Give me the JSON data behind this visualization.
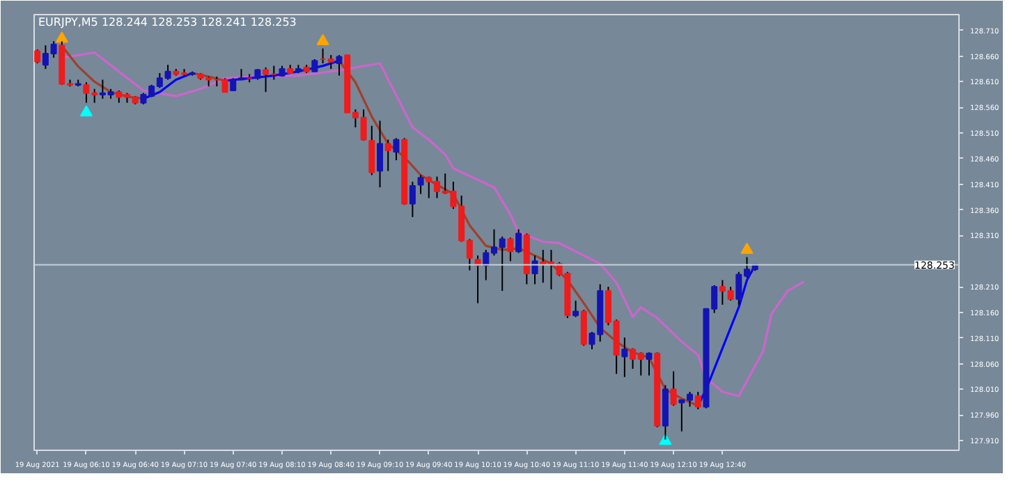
{
  "chart_data": {
    "type": "candlestick",
    "title": "EURJPY,M5 128.244 128.253 128.241 128.253",
    "x": [
      "2021-08-19T05:40",
      "2021-08-19T05:45",
      "2021-08-19T05:50",
      "2021-08-19T05:55",
      "2021-08-19T06:00",
      "2021-08-19T06:05",
      "2021-08-19T06:10",
      "2021-08-19T06:15",
      "2021-08-19T06:20",
      "2021-08-19T06:25",
      "2021-08-19T06:30",
      "2021-08-19T06:35",
      "2021-08-19T06:40",
      "2021-08-19T06:45",
      "2021-08-19T06:50",
      "2021-08-19T06:55",
      "2021-08-19T07:00",
      "2021-08-19T07:05",
      "2021-08-19T07:10",
      "2021-08-19T07:15",
      "2021-08-19T07:20",
      "2021-08-19T07:25",
      "2021-08-19T07:30",
      "2021-08-19T07:35",
      "2021-08-19T07:40",
      "2021-08-19T07:45",
      "2021-08-19T07:50",
      "2021-08-19T07:55",
      "2021-08-19T08:00",
      "2021-08-19T08:05",
      "2021-08-19T08:10",
      "2021-08-19T08:15",
      "2021-08-19T08:20",
      "2021-08-19T08:25",
      "2021-08-19T08:30",
      "2021-08-19T08:35",
      "2021-08-19T08:40",
      "2021-08-19T08:45",
      "2021-08-19T08:50",
      "2021-08-19T08:55",
      "2021-08-19T09:00",
      "2021-08-19T09:05",
      "2021-08-19T09:10",
      "2021-08-19T09:15",
      "2021-08-19T09:20",
      "2021-08-19T09:25",
      "2021-08-19T09:30",
      "2021-08-19T09:35",
      "2021-08-19T09:40",
      "2021-08-19T09:45",
      "2021-08-19T09:50",
      "2021-08-19T09:55",
      "2021-08-19T10:00",
      "2021-08-19T10:05",
      "2021-08-19T10:10",
      "2021-08-19T10:15",
      "2021-08-19T10:20",
      "2021-08-19T10:25",
      "2021-08-19T10:30",
      "2021-08-19T10:35",
      "2021-08-19T10:40",
      "2021-08-19T10:45",
      "2021-08-19T10:50",
      "2021-08-19T10:55",
      "2021-08-19T11:00",
      "2021-08-19T11:05",
      "2021-08-19T11:10",
      "2021-08-19T11:15",
      "2021-08-19T11:20",
      "2021-08-19T11:25",
      "2021-08-19T11:30",
      "2021-08-19T11:35",
      "2021-08-19T11:40",
      "2021-08-19T11:45",
      "2021-08-19T11:50",
      "2021-08-19T11:55",
      "2021-08-19T12:00",
      "2021-08-19T12:05",
      "2021-08-19T12:10",
      "2021-08-19T12:15",
      "2021-08-19T12:20",
      "2021-08-19T12:25",
      "2021-08-19T12:30",
      "2021-08-19T12:35",
      "2021-08-19T12:40",
      "2021-08-19T12:45",
      "2021-08-19T12:50",
      "2021-08-19T12:55",
      "2021-08-19T13:00"
    ],
    "ohlc": [
      [
        128.67,
        128.673,
        128.646,
        128.649
      ],
      [
        128.643,
        128.681,
        128.635,
        128.665
      ],
      [
        128.665,
        128.689,
        128.657,
        128.683
      ],
      [
        128.681,
        128.689,
        128.604,
        128.606
      ],
      [
        128.606,
        128.614,
        128.601,
        128.604
      ],
      [
        128.604,
        128.614,
        128.601,
        128.606
      ],
      [
        128.604,
        128.609,
        128.569,
        128.588
      ],
      [
        128.588,
        128.596,
        128.569,
        128.585
      ],
      [
        128.585,
        128.614,
        128.577,
        128.588
      ],
      [
        128.585,
        128.596,
        128.577,
        128.59
      ],
      [
        128.59,
        128.593,
        128.569,
        128.58
      ],
      [
        128.585,
        128.588,
        128.569,
        128.58
      ],
      [
        128.58,
        128.582,
        128.566,
        128.569
      ],
      [
        128.569,
        128.588,
        128.566,
        128.585
      ],
      [
        128.582,
        128.604,
        128.58,
        128.601
      ],
      [
        128.601,
        128.627,
        128.598,
        128.617
      ],
      [
        128.617,
        128.643,
        128.614,
        128.63
      ],
      [
        128.63,
        128.635,
        128.622,
        128.625
      ],
      [
        128.627,
        128.635,
        128.622,
        128.625
      ],
      [
        128.625,
        128.63,
        128.622,
        128.627
      ],
      [
        128.625,
        128.627,
        128.614,
        128.617
      ],
      [
        128.617,
        128.62,
        128.601,
        128.614
      ],
      [
        128.614,
        128.62,
        128.601,
        128.614
      ],
      [
        128.614,
        128.617,
        128.59,
        128.59
      ],
      [
        128.593,
        128.617,
        128.593,
        128.614
      ],
      [
        128.614,
        128.635,
        128.614,
        128.617
      ],
      [
        128.617,
        128.625,
        128.609,
        128.617
      ],
      [
        128.617,
        128.635,
        128.614,
        128.633
      ],
      [
        128.633,
        128.638,
        128.59,
        128.625
      ],
      [
        128.625,
        128.641,
        128.614,
        128.625
      ],
      [
        128.622,
        128.641,
        128.62,
        128.635
      ],
      [
        128.635,
        128.643,
        128.627,
        128.627
      ],
      [
        128.63,
        128.643,
        128.627,
        128.635
      ],
      [
        128.638,
        128.643,
        128.627,
        128.63
      ],
      [
        128.63,
        128.654,
        128.63,
        128.651
      ],
      [
        128.654,
        128.675,
        128.646,
        128.654
      ],
      [
        128.654,
        128.662,
        128.635,
        128.649
      ],
      [
        128.646,
        128.662,
        128.622,
        128.659
      ],
      [
        128.662,
        128.662,
        128.55,
        128.55
      ],
      [
        128.55,
        128.556,
        128.521,
        128.54
      ],
      [
        128.54,
        128.556,
        128.495,
        128.497
      ],
      [
        128.495,
        128.524,
        128.428,
        128.433
      ],
      [
        128.436,
        128.534,
        128.404,
        128.489
      ],
      [
        128.489,
        128.497,
        128.436,
        128.476
      ],
      [
        128.473,
        128.5,
        128.457,
        128.497
      ],
      [
        128.497,
        128.5,
        128.37,
        128.372
      ],
      [
        128.372,
        128.415,
        128.346,
        128.407
      ],
      [
        128.409,
        128.428,
        128.391,
        128.423
      ],
      [
        128.423,
        128.425,
        128.383,
        128.415
      ],
      [
        128.415,
        128.425,
        128.383,
        128.396
      ],
      [
        128.396,
        128.431,
        128.391,
        128.393
      ],
      [
        128.396,
        128.415,
        128.362,
        128.367
      ],
      [
        128.367,
        128.388,
        128.298,
        128.3
      ],
      [
        128.3,
        128.303,
        128.242,
        128.266
      ],
      [
        128.263,
        128.271,
        128.178,
        128.252
      ],
      [
        128.252,
        128.282,
        128.223,
        128.276
      ],
      [
        128.276,
        128.322,
        128.271,
        128.287
      ],
      [
        128.287,
        128.308,
        128.202,
        128.303
      ],
      [
        128.303,
        128.306,
        128.26,
        128.279
      ],
      [
        128.279,
        128.322,
        128.276,
        128.314
      ],
      [
        128.311,
        128.314,
        128.215,
        128.236
      ],
      [
        128.236,
        128.271,
        128.215,
        128.26
      ],
      [
        128.258,
        128.282,
        128.218,
        128.255
      ],
      [
        128.258,
        128.282,
        128.205,
        128.255
      ],
      [
        128.255,
        128.258,
        128.231,
        128.234
      ],
      [
        128.236,
        128.239,
        128.149,
        128.154
      ],
      [
        128.154,
        128.183,
        128.151,
        128.162
      ],
      [
        128.162,
        128.165,
        128.095,
        128.098
      ],
      [
        128.098,
        128.122,
        128.088,
        128.119
      ],
      [
        128.117,
        128.215,
        128.103,
        128.202
      ],
      [
        128.202,
        128.21,
        128.135,
        128.141
      ],
      [
        128.143,
        128.146,
        128.04,
        128.077
      ],
      [
        128.074,
        128.111,
        128.034,
        128.088
      ],
      [
        128.088,
        128.09,
        128.05,
        128.069
      ],
      [
        128.08,
        128.082,
        128.037,
        128.069
      ],
      [
        128.069,
        128.082,
        128.037,
        128.08
      ],
      [
        128.08,
        128.082,
        127.936,
        127.939
      ],
      [
        127.939,
        128.018,
        127.912,
        128.01
      ],
      [
        128.01,
        128.045,
        127.978,
        127.981
      ],
      [
        127.984,
        127.989,
        127.928,
        127.989
      ],
      [
        127.989,
        128.005,
        127.976,
        128.0
      ],
      [
        127.997,
        128.005,
        127.971,
        127.976
      ],
      [
        127.976,
        128.167,
        127.973,
        128.167
      ],
      [
        128.167,
        128.213,
        128.159,
        128.21
      ],
      [
        128.21,
        128.223,
        128.175,
        128.202
      ],
      [
        128.202,
        128.21,
        128.183,
        128.186
      ],
      [
        128.186,
        128.239,
        128.175,
        128.234
      ],
      [
        128.231,
        128.268,
        128.228,
        128.244
      ],
      [
        128.244,
        128.253,
        128.241,
        128.253
      ]
    ],
    "colors": [
      "#ee1c1c",
      "#1414b4",
      "#1414b4",
      "#ee1c1c",
      "#ee1c1c",
      "#1414b4",
      "#ee1c1c",
      "#ee1c1c",
      "#1414b4",
      "#1414b4",
      "#ee1c1c",
      "#ee1c1c",
      "#ee1c1c",
      "#1414b4",
      "#1414b4",
      "#1414b4",
      "#1414b4",
      "#ee1c1c",
      "#ee1c1c",
      "#1414b4",
      "#ee1c1c",
      "#ee1c1c",
      "#ee1c1c",
      "#ee1c1c",
      "#1414b4",
      "#1414b4",
      "#ee1c1c",
      "#1414b4",
      "#ee1c1c",
      "#ee1c1c",
      "#1414b4",
      "#ee1c1c",
      "#1414b4",
      "#ee1c1c",
      "#1414b4",
      "#ee1c1c",
      "#ee1c1c",
      "#1414b4",
      "#ee1c1c",
      "#ee1c1c",
      "#ee1c1c",
      "#ee1c1c",
      "#1414b4",
      "#ee1c1c",
      "#1414b4",
      "#ee1c1c",
      "#1414b4",
      "#1414b4",
      "#ee1c1c",
      "#ee1c1c",
      "#ee1c1c",
      "#ee1c1c",
      "#ee1c1c",
      "#ee1c1c",
      "#ee1c1c",
      "#1414b4",
      "#1414b4",
      "#1414b4",
      "#ee1c1c",
      "#1414b4",
      "#ee1c1c",
      "#1414b4",
      "#ee1c1c",
      "#ee1c1c",
      "#ee1c1c",
      "#ee1c1c",
      "#1414b4",
      "#ee1c1c",
      "#1414b4",
      "#1414b4",
      "#ee1c1c",
      "#ee1c1c",
      "#1414b4",
      "#ee1c1c",
      "#ee1c1c",
      "#1414b4",
      "#ee1c1c",
      "#1414b4",
      "#ee1c1c",
      "#1414b4",
      "#1414b4",
      "#ee1c1c",
      "#1414b4",
      "#1414b4",
      "#ee1c1c",
      "#ee1c1c",
      "#1414b4",
      "#1414b4",
      "#1414b4"
    ],
    "series": [
      {
        "type": "line",
        "color": "#cc66cc",
        "x": [
          "2021-08-19T05:55",
          "2021-08-19T06:15",
          "2021-08-19T06:30",
          "2021-08-19T06:45",
          "2021-08-19T07:05",
          "2021-08-19T07:20",
          "2021-08-19T07:35",
          "2021-08-19T07:55",
          "2021-08-19T08:20",
          "2021-08-19T08:35",
          "2021-08-19T08:50",
          "2021-08-19T09:10",
          "2021-08-19T09:30",
          "2021-08-19T09:40",
          "2021-08-19T09:50",
          "2021-08-19T09:55",
          "2021-08-19T10:20",
          "2021-08-19T10:30",
          "2021-08-19T10:35",
          "2021-08-19T10:50",
          "2021-08-19T11:00",
          "2021-08-19T11:15",
          "2021-08-19T11:25",
          "2021-08-19T11:35",
          "2021-08-19T11:45",
          "2021-08-19T11:50",
          "2021-08-19T12:00",
          "2021-08-19T12:15",
          "2021-08-19T12:25",
          "2021-08-19T12:30",
          "2021-08-19T12:40",
          "2021-08-19T12:50",
          "2021-08-19T13:05",
          "2021-08-19T13:10",
          "2021-08-19T13:20",
          "2021-08-19T13:30"
        ],
        "values": [
          128.657,
          128.667,
          128.63,
          128.593,
          128.582,
          128.596,
          128.617,
          128.62,
          128.622,
          128.628,
          128.635,
          128.646,
          128.521,
          128.497,
          128.468,
          128.441,
          128.404,
          128.351,
          128.316,
          128.298,
          128.295,
          128.271,
          128.255,
          128.218,
          128.151,
          128.17,
          128.149,
          128.103,
          128.077,
          128.032,
          128.005,
          127.997,
          128.085,
          128.157,
          128.202,
          128.22
        ]
      },
      {
        "type": "line",
        "color": "#a0402d",
        "x": [
          "2021-08-19T05:55",
          "2021-08-19T06:05",
          "2021-08-19T06:15",
          "2021-08-19T06:25",
          "2021-08-19T06:35",
          "2021-08-19T06:45",
          "2021-08-19T06:50",
          "2021-08-19T07:15",
          "2021-08-19T07:25",
          "2021-08-19T07:35",
          "2021-08-19T07:40",
          "2021-08-19T08:45",
          "2021-08-19T08:55",
          "2021-08-19T09:05",
          "2021-08-19T09:15",
          "2021-08-19T09:25",
          "2021-08-19T09:35",
          "2021-08-19T09:45",
          "2021-08-19T09:55",
          "2021-08-19T10:05",
          "2021-08-19T10:15",
          "2021-08-19T10:25",
          "2021-08-19T10:35",
          "2021-08-19T10:45",
          "2021-08-19T10:55",
          "2021-08-19T11:05",
          "2021-08-19T11:15",
          "2021-08-19T11:25",
          "2021-08-19T11:35",
          "2021-08-19T11:45",
          "2021-08-19T11:55",
          "2021-08-19T12:05",
          "2021-08-19T12:15",
          "2021-08-19T12:25"
        ],
        "values": [
          128.68,
          128.64,
          128.61,
          128.59,
          128.581,
          128.577,
          null,
          128.627,
          128.62,
          128.612,
          null,
          128.651,
          128.609,
          128.542,
          128.489,
          128.463,
          128.428,
          128.409,
          128.391,
          128.33,
          128.29,
          128.282,
          128.285,
          128.271,
          128.255,
          128.223,
          128.178,
          128.13,
          128.103,
          128.082,
          128.072,
          128.01,
          127.992,
          127.978
        ]
      },
      {
        "type": "line",
        "color": "#0000ff",
        "x": [
          "2021-08-19T06:45",
          "2021-08-19T06:55",
          "2021-08-19T07:05",
          "2021-08-19T07:15",
          "2021-08-19T07:20",
          "2021-08-19T07:35",
          "2021-08-19T07:50",
          "2021-08-19T08:05",
          "2021-08-19T08:20",
          "2021-08-19T08:35",
          "2021-08-19T08:45",
          "2021-08-19T08:50",
          "2021-08-19T12:25",
          "2021-08-19T12:30",
          "2021-08-19T12:40",
          "2021-08-19T12:50",
          "2021-08-19T12:55",
          "2021-08-19T13:00"
        ],
        "values": [
          128.577,
          128.59,
          128.614,
          128.627,
          null,
          128.612,
          128.617,
          128.622,
          128.63,
          128.641,
          128.651,
          null,
          127.978,
          128.01,
          128.09,
          128.17,
          128.223,
          128.252
        ]
      },
      {
        "type": "scatter",
        "marker": "triangle",
        "color": "#ffa500",
        "x": [
          "2021-08-19T05:55",
          "2021-08-19T08:35",
          "2021-08-19T12:55"
        ],
        "values": [
          128.694,
          128.689,
          128.282
        ]
      },
      {
        "type": "scatter",
        "marker": "triangle",
        "color": "#00ffff",
        "x": [
          "2021-08-19T06:10",
          "2021-08-19T12:05"
        ],
        "values": [
          128.55,
          127.909
        ]
      }
    ],
    "xlim": [
      "2021-08-19T05:38",
      "2021-08-19T15:05"
    ],
    "ylim": [
      127.891,
      128.741
    ],
    "xticks": [
      {
        "value": "2021-08-19T05:40",
        "label": "19 Aug 2021"
      },
      {
        "value": "2021-08-19T06:10",
        "label": "19 Aug 06:10"
      },
      {
        "value": "2021-08-19T06:40",
        "label": "19 Aug 06:40"
      },
      {
        "value": "2021-08-19T07:10",
        "label": "19 Aug 07:10"
      },
      {
        "value": "2021-08-19T07:40",
        "label": "19 Aug 07:40"
      },
      {
        "value": "2021-08-19T08:10",
        "label": "19 Aug 08:10"
      },
      {
        "value": "2021-08-19T08:40",
        "label": "19 Aug 08:40"
      },
      {
        "value": "2021-08-19T09:10",
        "label": "19 Aug 09:10"
      },
      {
        "value": "2021-08-19T09:40",
        "label": "19 Aug 09:40"
      },
      {
        "value": "2021-08-19T10:10",
        "label": "19 Aug 10:10"
      },
      {
        "value": "2021-08-19T10:40",
        "label": "19 Aug 10:40"
      },
      {
        "value": "2021-08-19T11:10",
        "label": "19 Aug 11:10"
      },
      {
        "value": "2021-08-19T11:40",
        "label": "19 Aug 11:40"
      },
      {
        "value": "2021-08-19T12:10",
        "label": "19 Aug 12:10"
      },
      {
        "value": "2021-08-19T12:40",
        "label": "19 Aug 12:40"
      }
    ],
    "yticks": [
      {
        "value": 127.91,
        "label": "127.910"
      },
      {
        "value": 127.96,
        "label": "127.960"
      },
      {
        "value": 128.01,
        "label": "128.010"
      },
      {
        "value": 128.06,
        "label": "128.060"
      },
      {
        "value": 128.11,
        "label": "128.110"
      },
      {
        "value": 128.16,
        "label": "128.160"
      },
      {
        "value": 128.21,
        "label": "128.210"
      },
      {
        "value": 128.31,
        "label": "128.310"
      },
      {
        "value": 128.36,
        "label": "128.360"
      },
      {
        "value": 128.41,
        "label": "128.410"
      },
      {
        "value": 128.46,
        "label": "128.460"
      },
      {
        "value": 128.51,
        "label": "128.510"
      },
      {
        "value": 128.56,
        "label": "128.560"
      },
      {
        "value": 128.61,
        "label": "128.610"
      },
      {
        "value": 128.66,
        "label": "128.660"
      },
      {
        "value": 128.71,
        "label": "128.710"
      }
    ],
    "ref_lines": [
      {
        "axis": "y",
        "value": 128.253,
        "label": "128.253",
        "color": "#c8d0d8"
      }
    ]
  }
}
